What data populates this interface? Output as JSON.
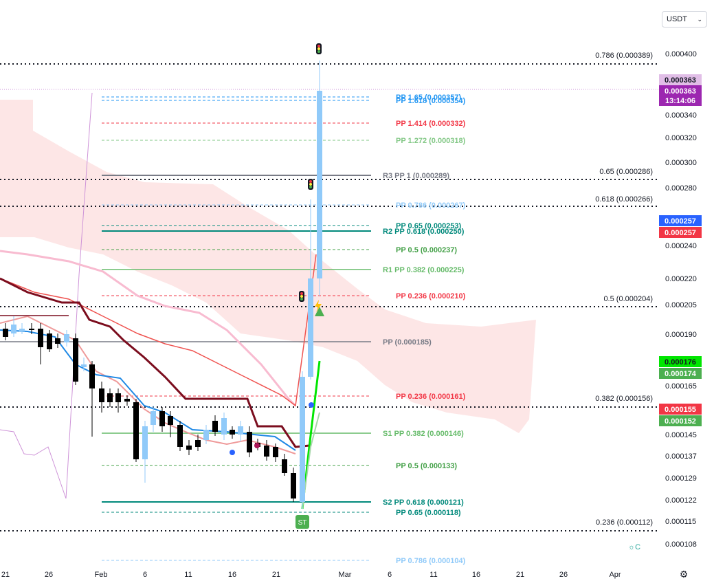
{
  "currency_select": {
    "label": "USDT"
  },
  "chart_data": {
    "type": "candlestick",
    "x_ticks": [
      "21",
      "26",
      "Feb",
      "6",
      "11",
      "16",
      "21",
      "Mar",
      "6",
      "11",
      "16",
      "21",
      "26",
      "Apr"
    ],
    "y_ticks": [
      "0.000400",
      "0.000340",
      "0.000320",
      "0.000300",
      "0.000280",
      "0.000240",
      "0.000220",
      "0.000205",
      "0.000190",
      "0.000165",
      "0.000145",
      "0.000137",
      "0.000129",
      "0.000122",
      "0.000115",
      "0.000108"
    ],
    "price_badges": [
      {
        "value": "0.000363",
        "color": "#e1bee7",
        "text_color": "#131722"
      },
      {
        "value": "0.000363",
        "color": "#9c27b0",
        "text_color": "#ffffff"
      },
      {
        "value": "13:14:06",
        "color": "#9c27b0",
        "text_color": "#ffffff"
      },
      {
        "value": "0.000257",
        "color": "#2962ff",
        "text_color": "#ffffff"
      },
      {
        "value": "0.000257",
        "color": "#f23645",
        "text_color": "#ffffff"
      },
      {
        "value": "0.000176",
        "color": "#00e600",
        "text_color": "#131722"
      },
      {
        "value": "0.000174",
        "color": "#4caf50",
        "text_color": "#ffffff"
      },
      {
        "value": "0.000155",
        "color": "#f23645",
        "text_color": "#ffffff"
      },
      {
        "value": "0.000152",
        "color": "#4caf50",
        "text_color": "#ffffff"
      }
    ],
    "fib_levels": [
      {
        "label": "0.786 (0.000389)"
      },
      {
        "label": "0.65 (0.000286)"
      },
      {
        "label": "0.618 (0.000266)"
      },
      {
        "label": "0.5 (0.000204)"
      },
      {
        "label": "0.382 (0.000156)"
      },
      {
        "label": "0.236 (0.000112)"
      }
    ],
    "pivot_levels": [
      {
        "label": "PP 1.65 (0.000357)",
        "color": "#2196f3"
      },
      {
        "label": "PP 1.618 (0.000354)",
        "color": "#2196f3"
      },
      {
        "label": "PP 1.414 (0.000332)",
        "color": "#f23645"
      },
      {
        "label": "PP 1.272 (0.000318)",
        "color": "#81c784"
      },
      {
        "label": "R3 PP 1 (0.000289)",
        "color": "#787b86"
      },
      {
        "label": "PP 0.786 (0.000267)",
        "color": "#90caf9"
      },
      {
        "label": "PP 0.65 (0.000253)",
        "color": "#00897b"
      },
      {
        "label": "R2 PP 0.618 (0.000250)",
        "color": "#00897b"
      },
      {
        "label": "PP 0.5 (0.000237)",
        "color": "#43a047"
      },
      {
        "label": "R1 PP 0.382 (0.000225)",
        "color": "#66bb6a"
      },
      {
        "label": "PP 0.236 (0.000210)",
        "color": "#f23645"
      },
      {
        "label": "PP (0.000185)",
        "color": "#787b86"
      },
      {
        "label": "PP 0.236 (0.000161)",
        "color": "#f23645"
      },
      {
        "label": "S1 PP 0.382 (0.000146)",
        "color": "#66bb6a"
      },
      {
        "label": "PP 0.5 (0.000133)",
        "color": "#43a047"
      },
      {
        "label": "S2 PP 0.618 (0.000121)",
        "color": "#00897b"
      },
      {
        "label": "PP 0.65 (0.000118)",
        "color": "#00897b"
      },
      {
        "label": "PP 0.786 (0.000104)",
        "color": "#90caf9"
      }
    ],
    "markers": {
      "st_label": "ST"
    }
  },
  "icons": {
    "settings": "gear-icon",
    "auto_logo": "auto-scale-icon"
  },
  "colors": {
    "up": "#90caf9",
    "down": "#000000",
    "cloud": "#fde0e0"
  }
}
